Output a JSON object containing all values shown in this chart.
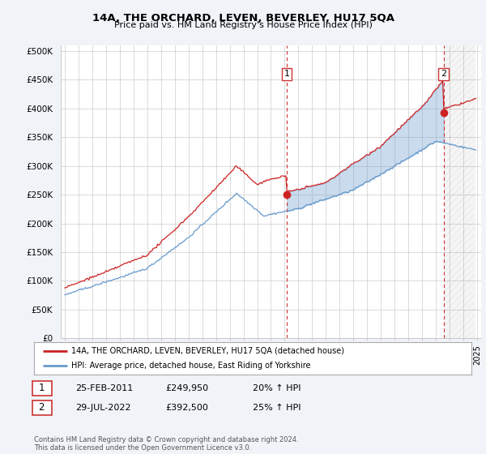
{
  "title": "14A, THE ORCHARD, LEVEN, BEVERLEY, HU17 5QA",
  "subtitle": "Price paid vs. HM Land Registry's House Price Index (HPI)",
  "ylabel_ticks": [
    "£0",
    "£50K",
    "£100K",
    "£150K",
    "£200K",
    "£250K",
    "£300K",
    "£350K",
    "£400K",
    "£450K",
    "£500K"
  ],
  "ytick_vals": [
    0,
    50000,
    100000,
    150000,
    200000,
    250000,
    300000,
    350000,
    400000,
    450000,
    500000
  ],
  "xlim_start": 1994.7,
  "xlim_end": 2025.3,
  "ylim": [
    0,
    510000
  ],
  "hpi_color": "#6699cc",
  "price_color": "#cc2222",
  "point1_x": 2011.15,
  "point1_y": 249950,
  "point2_x": 2022.57,
  "point2_y": 392500,
  "annotation1_label": "1",
  "annotation2_label": "2",
  "shade_color": "#ddeeff",
  "shade_alpha": 0.7,
  "legend_line1": "14A, THE ORCHARD, LEVEN, BEVERLEY, HU17 5QA (detached house)",
  "legend_line2": "HPI: Average price, detached house, East Riding of Yorkshire",
  "table_row1_num": "1",
  "table_row1_date": "25-FEB-2011",
  "table_row1_price": "£249,950",
  "table_row1_hpi": "20% ↑ HPI",
  "table_row2_num": "2",
  "table_row2_date": "29-JUL-2022",
  "table_row2_price": "£392,500",
  "table_row2_hpi": "25% ↑ HPI",
  "footnote": "Contains HM Land Registry data © Crown copyright and database right 2024.\nThis data is licensed under the Open Government Licence v3.0.",
  "background_color": "#f0f4f8",
  "plot_bg_color": "#ffffff",
  "grid_color": "#cccccc",
  "vline_color": "#cc3333",
  "vline_style": "--"
}
